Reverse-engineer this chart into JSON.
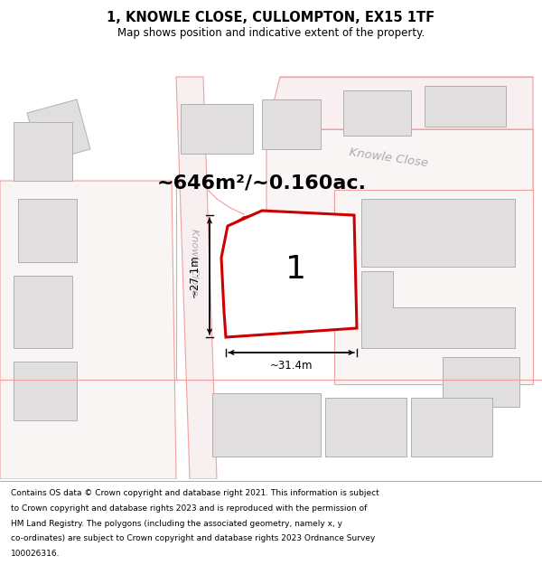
{
  "title": "1, KNOWLE CLOSE, CULLOMPTON, EX15 1TF",
  "subtitle": "Map shows position and indicative extent of the property.",
  "area_text": "~646m²/~0.160ac.",
  "label_number": "1",
  "dim_width": "~31.4m",
  "dim_height": "~27.1m",
  "road_label": "Knowle Close",
  "bg_color": "#f5f4f4",
  "plot_fill": "#f0efef",
  "border_thin": "#f0a0a0",
  "border_main": "#cc0000",
  "building_fill": "#e0dede",
  "building_edge": "#b0b0b0",
  "footer_lines": [
    "Contains OS data © Crown copyright and database right 2021. This information is subject",
    "to Crown copyright and database rights 2023 and is reproduced with the permission of",
    "HM Land Registry. The polygons (including the associated geometry, namely x, y",
    "co-ordinates) are subject to Crown copyright and database rights 2023 Ordnance Survey",
    "100026316."
  ],
  "figsize": [
    6.0,
    6.25
  ],
  "dpi": 100
}
